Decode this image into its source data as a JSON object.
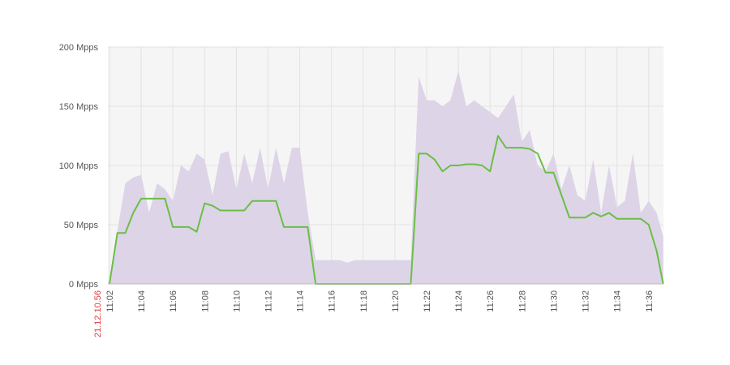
{
  "chart_data": {
    "type": "area_line",
    "start_label": "21.12.10.56",
    "start_label_color": "#e0393e",
    "x": [
      "11:02:00",
      "11:02:30",
      "11:03:00",
      "11:03:30",
      "11:04:00",
      "11:04:30",
      "11:05:00",
      "11:05:30",
      "11:06:00",
      "11:06:30",
      "11:07:00",
      "11:07:30",
      "11:08:00",
      "11:08:30",
      "11:09:00",
      "11:09:30",
      "11:10:00",
      "11:10:30",
      "11:11:00",
      "11:11:30",
      "11:12:00",
      "11:12:30",
      "11:13:00",
      "11:13:30",
      "11:14:00",
      "11:14:30",
      "11:15:00",
      "11:15:30",
      "11:16:00",
      "11:16:30",
      "11:17:00",
      "11:17:30",
      "11:18:00",
      "11:18:30",
      "11:19:00",
      "11:19:30",
      "11:20:00",
      "11:20:30",
      "11:21:00",
      "11:21:30",
      "11:22:00",
      "11:22:30",
      "11:23:00",
      "11:23:30",
      "11:24:00",
      "11:24:30",
      "11:25:00",
      "11:25:30",
      "11:26:00",
      "11:26:30",
      "11:27:00",
      "11:27:30",
      "11:28:00",
      "11:28:30",
      "11:29:00",
      "11:29:30",
      "11:30:00",
      "11:30:30",
      "11:31:00",
      "11:31:30",
      "11:32:00",
      "11:32:30",
      "11:33:00",
      "11:33:30",
      "11:34:00",
      "11:34:30",
      "11:35:00",
      "11:35:30",
      "11:36:00",
      "11:36:30",
      "11:36:55"
    ],
    "series": [
      {
        "kind": "area",
        "color": "#ddd4e7",
        "values": [
          0,
          45,
          85,
          90,
          92,
          60,
          85,
          80,
          70,
          100,
          95,
          110,
          105,
          75,
          110,
          112,
          80,
          110,
          85,
          115,
          80,
          115,
          85,
          115,
          115,
          60,
          20,
          20,
          20,
          20,
          18,
          20,
          20,
          20,
          20,
          20,
          20,
          20,
          20,
          175,
          155,
          155,
          150,
          155,
          180,
          150,
          155,
          150,
          145,
          140,
          150,
          160,
          120,
          130,
          100,
          95,
          110,
          80,
          100,
          75,
          70,
          105,
          60,
          100,
          65,
          70,
          110,
          60,
          70,
          60,
          40
        ]
      },
      {
        "kind": "line",
        "color": "#6abf45",
        "values": [
          0,
          43,
          43,
          60,
          72,
          72,
          72,
          72,
          48,
          48,
          48,
          44,
          68,
          66,
          62,
          62,
          62,
          62,
          70,
          70,
          70,
          70,
          48,
          48,
          48,
          48,
          0,
          0,
          0,
          0,
          0,
          0,
          0,
          0,
          0,
          0,
          0,
          0,
          0,
          110,
          110,
          105,
          95,
          100,
          100,
          101,
          101,
          100,
          95,
          125,
          115,
          115,
          115,
          114,
          110,
          94,
          94,
          75,
          56,
          56,
          56,
          60,
          57,
          60,
          55,
          55,
          55,
          55,
          50,
          28,
          0
        ]
      }
    ],
    "xlim": [
      "11:01:54",
      "11:36:56"
    ],
    "xticks": [
      {
        "value": "11:02:00",
        "label": "11:02"
      },
      {
        "value": "11:04:00",
        "label": "11:04"
      },
      {
        "value": "11:06:00",
        "label": "11:06"
      },
      {
        "value": "11:08:00",
        "label": "11:08"
      },
      {
        "value": "11:10:00",
        "label": "11:10"
      },
      {
        "value": "11:12:00",
        "label": "11:12"
      },
      {
        "value": "11:14:00",
        "label": "11:14"
      },
      {
        "value": "11:16:00",
        "label": "11:16"
      },
      {
        "value": "11:18:00",
        "label": "11:18"
      },
      {
        "value": "11:20:00",
        "label": "11:20"
      },
      {
        "value": "11:22:00",
        "label": "11:22"
      },
      {
        "value": "11:24:00",
        "label": "11:24"
      },
      {
        "value": "11:26:00",
        "label": "11:26"
      },
      {
        "value": "11:28:00",
        "label": "11:28"
      },
      {
        "value": "11:30:00",
        "label": "11:30"
      },
      {
        "value": "11:32:00",
        "label": "11:32"
      },
      {
        "value": "11:34:00",
        "label": "11:34"
      },
      {
        "value": "11:36:00",
        "label": "11:36"
      }
    ],
    "ylim": [
      0,
      200
    ],
    "yticks": [
      {
        "value": 0,
        "label": "0 Mpps"
      },
      {
        "value": 50,
        "label": "50 Mpps"
      },
      {
        "value": 100,
        "label": "100 Mpps"
      },
      {
        "value": 150,
        "label": "150 Mpps"
      },
      {
        "value": 200,
        "label": "200 Mpps"
      }
    ],
    "grid": true
  }
}
